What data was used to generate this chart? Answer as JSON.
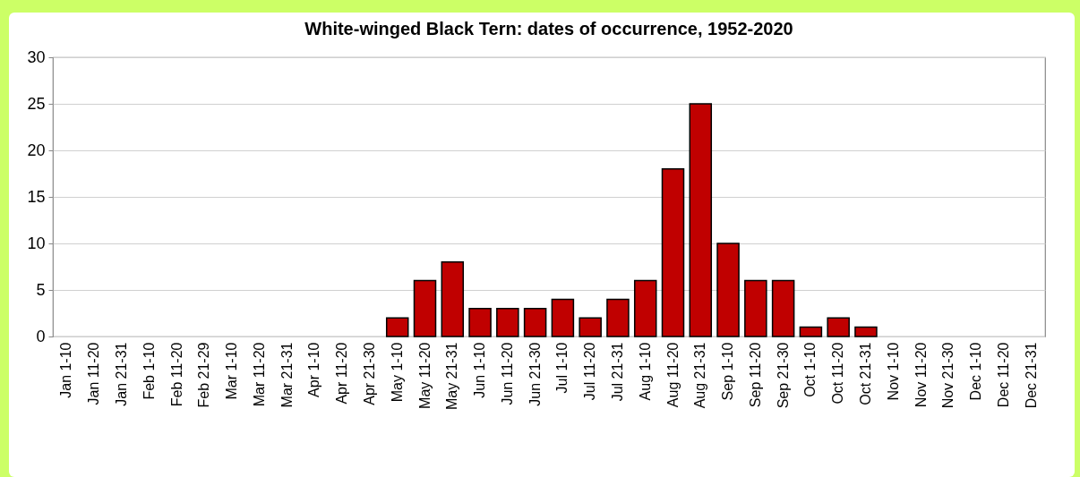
{
  "chart_data": {
    "type": "bar",
    "title": "White-winged Black Tern: dates of occurrence, 1952-2020",
    "categories": [
      "Jan 1-10",
      "Jan 11-20",
      "Jan 21-31",
      "Feb 1-10",
      "Feb 11-20",
      "Feb 21-29",
      "Mar 1-10",
      "Mar 11-20",
      "Mar 21-31",
      "Apr 1-10",
      "Apr 11-20",
      "Apr 21-30",
      "May 1-10",
      "May 11-20",
      "May 21-31",
      "Jun 1-10",
      "Jun 11-20",
      "Jun 21-30",
      "Jul 1-10",
      "Jul 11-20",
      "Jul 21-31",
      "Aug 1-10",
      "Aug 11-20",
      "Aug 21-31",
      "Sep 1-10",
      "Sep 11-20",
      "Sep 21-30",
      "Oct 1-10",
      "Oct 11-20",
      "Oct 21-31",
      "Nov 1-10",
      "Nov 11-20",
      "Nov 21-30",
      "Dec 1-10",
      "Dec 11-20",
      "Dec 21-31"
    ],
    "values": [
      0,
      0,
      0,
      0,
      0,
      0,
      0,
      0,
      0,
      0,
      0,
      0,
      2,
      6,
      8,
      3,
      3,
      3,
      4,
      2,
      4,
      6,
      18,
      25,
      10,
      6,
      6,
      1,
      2,
      1,
      0,
      0,
      0,
      0,
      0,
      0
    ],
    "color": "#c00000",
    "ylim": [
      0,
      30
    ],
    "yticks": [
      0,
      5,
      10,
      15,
      20,
      25,
      30
    ],
    "grid": "y"
  }
}
